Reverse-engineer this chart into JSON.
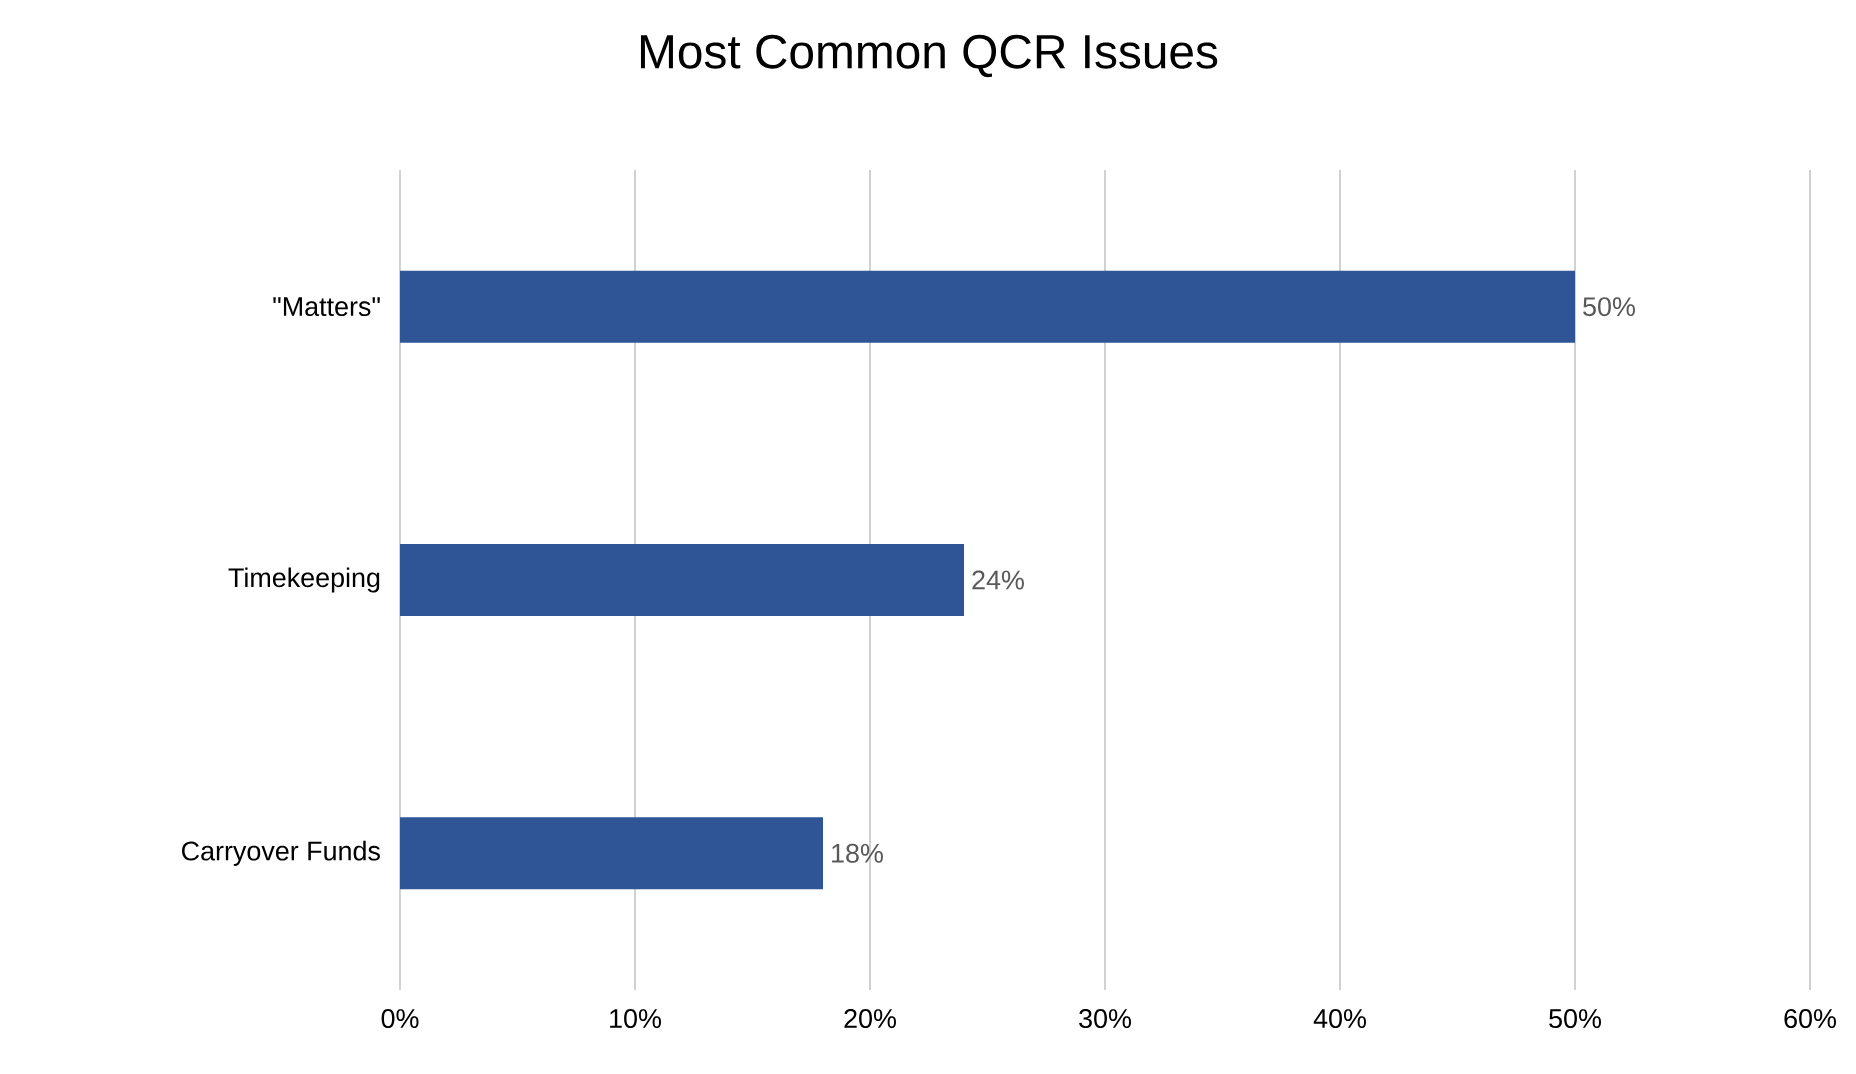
{
  "chart_data": {
    "type": "bar",
    "orientation": "horizontal",
    "title": "Most Common QCR Issues",
    "categories": [
      "\"Matters\"",
      "Timekeeping",
      "Carryover Funds"
    ],
    "values": [
      50,
      24,
      18
    ],
    "value_labels": [
      "50%",
      "24%",
      "18%"
    ],
    "color": "#2f5597",
    "xlim": [
      0,
      60
    ],
    "xticks": [
      {
        "value": 0,
        "label": "0%"
      },
      {
        "value": 10,
        "label": "10%"
      },
      {
        "value": 20,
        "label": "20%"
      },
      {
        "value": 30,
        "label": "30%"
      },
      {
        "value": 40,
        "label": "40%"
      },
      {
        "value": 50,
        "label": "50%"
      },
      {
        "value": 60,
        "label": "60%"
      }
    ],
    "grid": "x"
  }
}
